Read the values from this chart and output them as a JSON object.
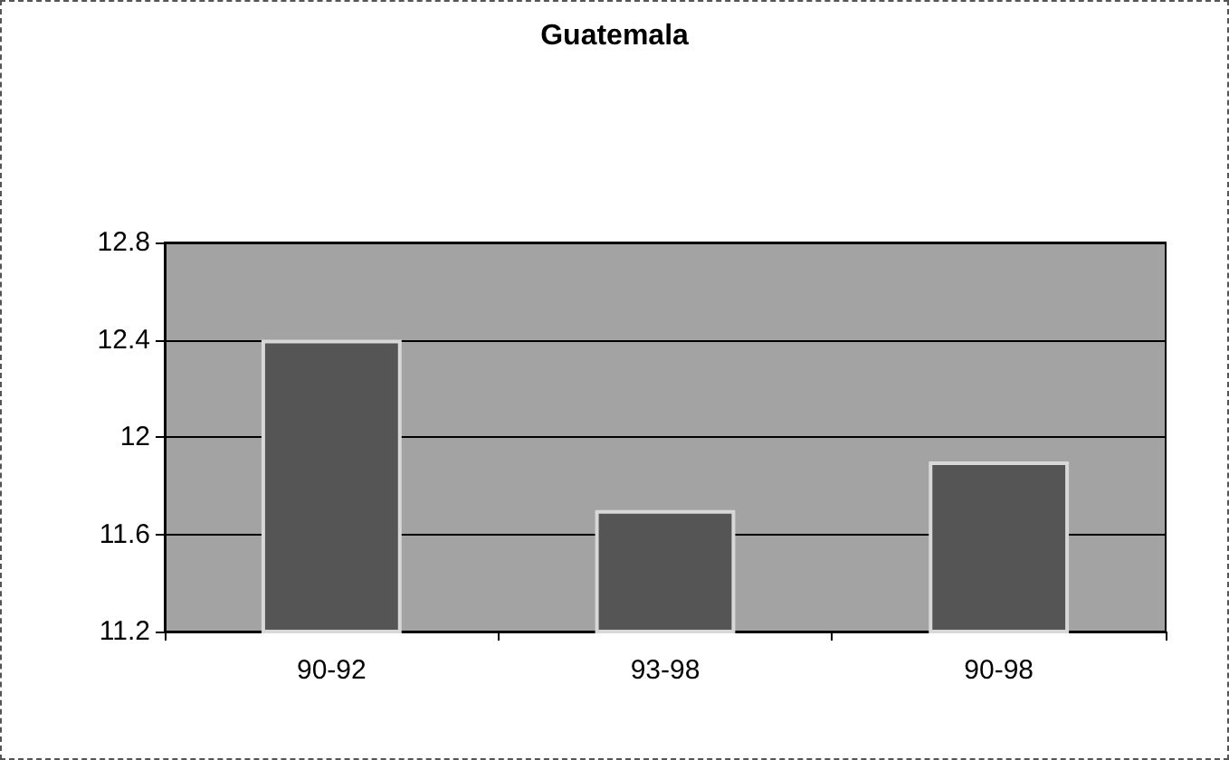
{
  "chart_data": {
    "type": "bar",
    "title": "Guatemala",
    "categories": [
      "90-92",
      "93-98",
      "90-98"
    ],
    "values": [
      12.4,
      11.7,
      11.9
    ],
    "color": "#555555",
    "ylim": [
      11.2,
      12.8
    ],
    "yticks": [
      11.2,
      11.6,
      12,
      12.4,
      12.8
    ],
    "grid": "y"
  }
}
